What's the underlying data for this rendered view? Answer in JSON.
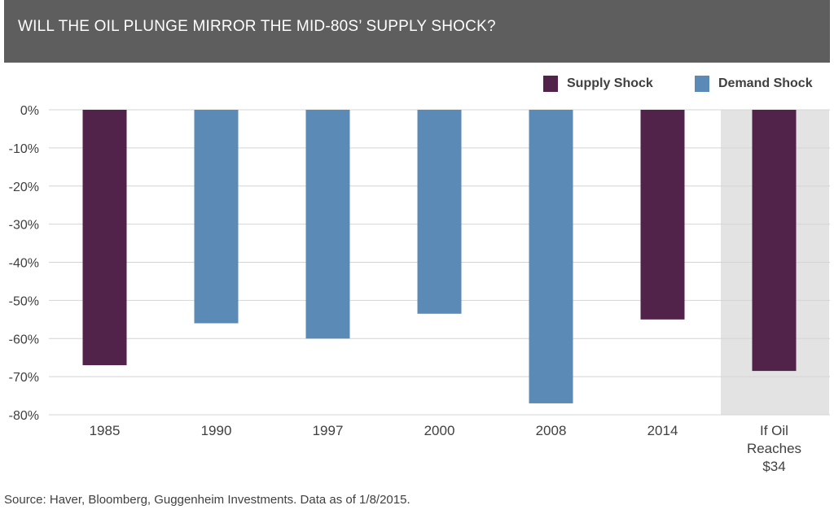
{
  "header": {
    "title": "WILL THE OIL PLUNGE MIRROR THE MID-80S’ SUPPLY SHOCK?"
  },
  "colors": {
    "supply": "#52234a",
    "demand": "#5b8ab6",
    "highlight": "#e3e3e3",
    "grid": "#d4d4d4",
    "title_bg": "#5e5e5e"
  },
  "legend": [
    {
      "label": "Supply Shock",
      "color": "#52234a"
    },
    {
      "label": "Demand Shock",
      "color": "#5b8ab6"
    }
  ],
  "chart_data": {
    "type": "bar",
    "title": "WILL THE OIL PLUNGE MIRROR THE MID-80S’ SUPPLY SHOCK?",
    "categories": [
      "1985",
      "1990",
      "1997",
      "2000",
      "2008",
      "2014",
      "If Oil Reaches $34"
    ],
    "category_lines": [
      [
        "1985"
      ],
      [
        "1990"
      ],
      [
        "1997"
      ],
      [
        "2000"
      ],
      [
        "2008"
      ],
      [
        "2014"
      ],
      [
        "If Oil",
        "Reaches",
        "$34"
      ]
    ],
    "values": [
      -67,
      -56,
      -60,
      -53.5,
      -77,
      -55,
      -68.5
    ],
    "shock_type": [
      "Supply Shock",
      "Demand Shock",
      "Demand Shock",
      "Demand Shock",
      "Demand Shock",
      "Supply Shock",
      "Supply Shock"
    ],
    "highlighted_category": "If Oil Reaches $34",
    "ylim": [
      -80,
      0
    ],
    "yticks": [
      0,
      -10,
      -20,
      -30,
      -40,
      -50,
      -60,
      -70,
      -80
    ],
    "ytick_labels": [
      "0%",
      "-10%",
      "-20%",
      "-30%",
      "-40%",
      "-50%",
      "-60%",
      "-70%",
      "-80%"
    ],
    "xlabel": "",
    "ylabel": "",
    "grid": true,
    "legend_position": "top-right"
  },
  "footer": {
    "source": "Source: Haver, Bloomberg, Guggenheim Investments. Data as of 1/8/2015."
  }
}
